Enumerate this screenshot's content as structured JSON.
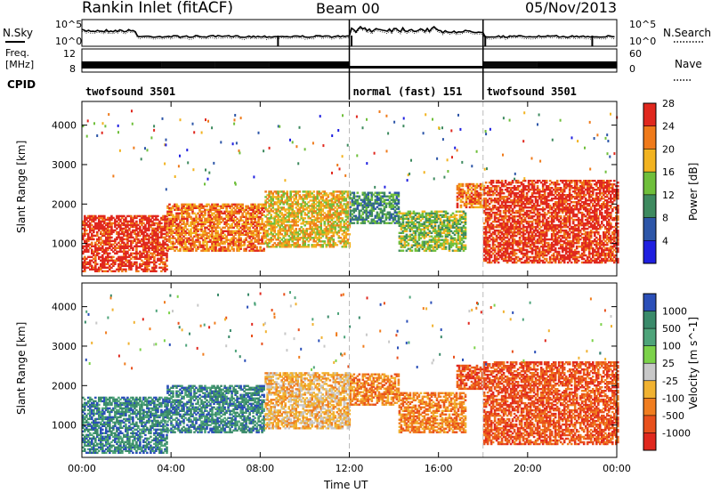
{
  "header": {
    "station": "Rankin Inlet (fitACF)",
    "beam": "Beam 00",
    "date": "05/Nov/2013"
  },
  "info_panel": {
    "left_labels": [
      "N.Sky",
      "Freq.",
      "[MHz]",
      "CPID"
    ],
    "right_labels": [
      "N.Search",
      "Nave"
    ],
    "nsky_ticks": [
      "10^5",
      "10^0"
    ],
    "nsearch_ticks": [
      "10^5",
      "10^0"
    ],
    "freq_ticks": [
      "12",
      "8"
    ],
    "nave_ticks": [
      "60",
      "0"
    ],
    "cpid_segments": [
      {
        "label": "twofsound 3501",
        "start_hour": 0,
        "end_hour": 12
      },
      {
        "label": "normal (fast) 151",
        "start_hour": 12,
        "end_hour": 18
      },
      {
        "label": "twofsound 3501",
        "start_hour": 18,
        "end_hour": 24
      }
    ]
  },
  "chart_data": [
    {
      "type": "heatmap",
      "name": "power-panel",
      "ylabel": "Slant Range [km]",
      "xlabel": "Time UT",
      "x_range_hours": [
        0,
        24
      ],
      "ylim": [
        180,
        4600
      ],
      "x_ticks": [
        "00:00",
        "04:00",
        "08:00",
        "12:00",
        "16:00",
        "20:00",
        "00:00"
      ],
      "y_ticks": [
        1000,
        2000,
        3000,
        4000
      ],
      "colorbar": {
        "label": "Power [dB]",
        "ticks": [
          "4",
          "8",
          "12",
          "16",
          "20",
          "24",
          "28"
        ],
        "colors": [
          "#1f1fe0",
          "#2d56a8",
          "#3e8a5f",
          "#6fbf3b",
          "#f2b320",
          "#ef7a1a",
          "#e0281e"
        ]
      },
      "echo_regions": [
        {
          "t0": 0.0,
          "t1": 3.8,
          "r0": 280,
          "r1": 1700,
          "level": 6
        },
        {
          "t0": 3.8,
          "t1": 8.2,
          "r0": 800,
          "r1": 2000,
          "level": 5
        },
        {
          "t0": 8.2,
          "t1": 12.0,
          "r0": 900,
          "r1": 2300,
          "level": 4
        },
        {
          "t0": 12.0,
          "t1": 14.2,
          "r0": 1500,
          "r1": 2300,
          "level": 2
        },
        {
          "t0": 14.2,
          "t1": 17.2,
          "r0": 800,
          "r1": 1800,
          "level": 3
        },
        {
          "t0": 16.8,
          "t1": 18.0,
          "r0": 1900,
          "r1": 2500,
          "level": 5
        },
        {
          "t0": 18.0,
          "t1": 24.0,
          "r0": 500,
          "r1": 2600,
          "level": 6
        }
      ]
    },
    {
      "type": "heatmap",
      "name": "velocity-panel",
      "ylabel": "Slant Range [km]",
      "xlabel": "Time UT",
      "x_range_hours": [
        0,
        24
      ],
      "ylim": [
        180,
        4600
      ],
      "x_ticks": [
        "00:00",
        "04:00",
        "08:00",
        "12:00",
        "16:00",
        "20:00",
        "00:00"
      ],
      "y_ticks": [
        1000,
        2000,
        3000,
        4000
      ],
      "colorbar": {
        "label": "Velocity [m s^-1]",
        "ticks": [
          "1000",
          "500",
          "100",
          "25",
          "-25",
          "-100",
          "-500",
          "-1000"
        ],
        "colors": [
          "#2b4fb8",
          "#3a8a6a",
          "#4ea47a",
          "#7cd24a",
          "#c8c8c8",
          "#f1b231",
          "#f07d1f",
          "#e8501c",
          "#e0281e"
        ]
      },
      "echo_regions": [
        {
          "t0": 0.0,
          "t1": 3.8,
          "r0": 280,
          "r1": 1700,
          "level": 1
        },
        {
          "t0": 3.8,
          "t1": 8.2,
          "r0": 800,
          "r1": 2000,
          "level": 1
        },
        {
          "t0": 8.2,
          "t1": 12.0,
          "r0": 900,
          "r1": 2300,
          "level": 5
        },
        {
          "t0": 12.0,
          "t1": 14.2,
          "r0": 1500,
          "r1": 2300,
          "level": 6
        },
        {
          "t0": 14.2,
          "t1": 17.2,
          "r0": 800,
          "r1": 1800,
          "level": 6
        },
        {
          "t0": 16.8,
          "t1": 18.0,
          "r0": 1900,
          "r1": 2500,
          "level": 7
        },
        {
          "t0": 18.0,
          "t1": 24.0,
          "r0": 500,
          "r1": 2600,
          "level": 7
        }
      ]
    }
  ]
}
